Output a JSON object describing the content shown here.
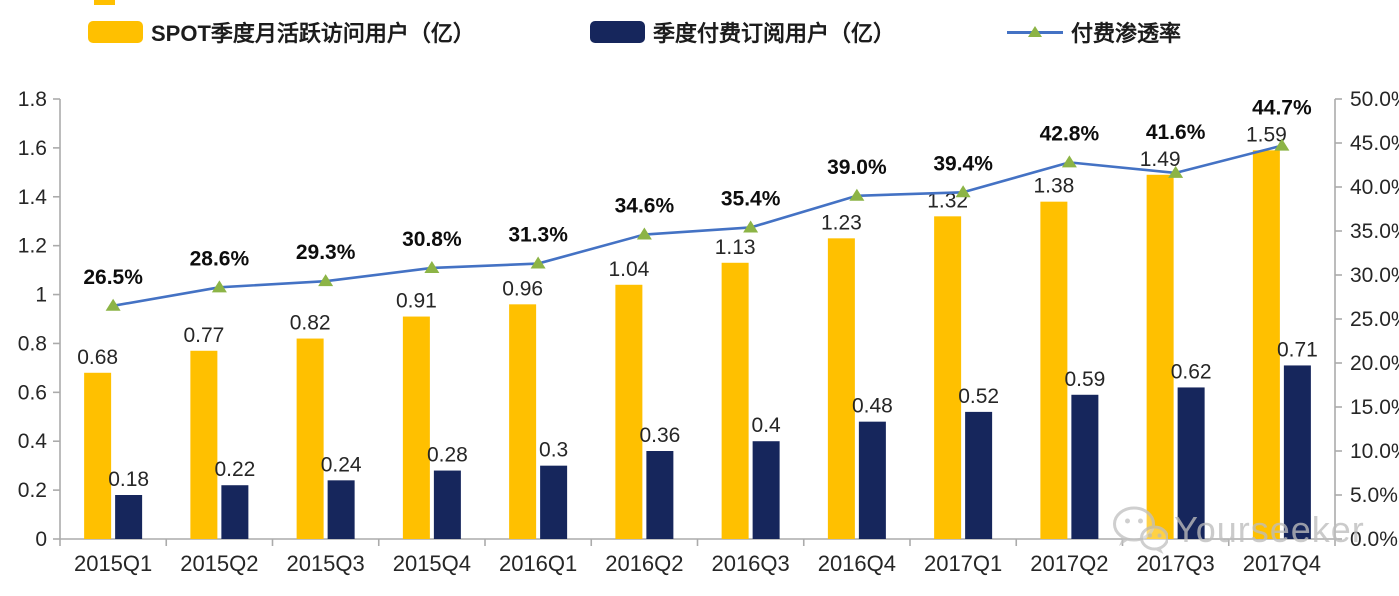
{
  "legend": [
    {
      "label": "SPOT季度月活跃访问用户（亿）",
      "type": "bar",
      "color": "#FFC000"
    },
    {
      "label": "季度付费订阅用户（亿）",
      "type": "bar",
      "color": "#16265C"
    },
    {
      "label": "付费渗透率",
      "type": "line",
      "color": "#4472C4",
      "marker_color": "#8CB446"
    }
  ],
  "chart_data": {
    "type": "bar",
    "subtype": "grouped-bars-with-line-combo",
    "categories": [
      "2015Q1",
      "2015Q2",
      "2015Q3",
      "2015Q4",
      "2016Q1",
      "2016Q2",
      "2016Q3",
      "2016Q4",
      "2017Q1",
      "2017Q2",
      "2017Q3",
      "2017Q4"
    ],
    "series": [
      {
        "name": "SPOT季度月活跃访问用户（亿）",
        "type": "bar",
        "axis": "left",
        "color": "#FFC000",
        "values": [
          0.68,
          0.77,
          0.82,
          0.91,
          0.96,
          1.04,
          1.13,
          1.23,
          1.32,
          1.38,
          1.49,
          1.59
        ],
        "labels": [
          "0.68",
          "0.77",
          "0.82",
          "0.91",
          "0.96",
          "1.04",
          "1.13",
          "1.23",
          "1.32",
          "1.38",
          "1.49",
          "1.59"
        ]
      },
      {
        "name": "季度付费订阅用户（亿）",
        "type": "bar",
        "axis": "left",
        "color": "#16265C",
        "values": [
          0.18,
          0.22,
          0.24,
          0.28,
          0.3,
          0.36,
          0.4,
          0.48,
          0.52,
          0.59,
          0.62,
          0.71
        ],
        "labels": [
          "0.18",
          "0.22",
          "0.24",
          "0.28",
          "0.3",
          "0.36",
          "0.4",
          "0.48",
          "0.52",
          "0.59",
          "0.62",
          "0.71"
        ]
      },
      {
        "name": "付费渗透率",
        "type": "line",
        "axis": "right",
        "color": "#4472C4",
        "marker": "triangle",
        "marker_color": "#8CB446",
        "values": [
          26.5,
          28.6,
          29.3,
          30.8,
          31.3,
          34.6,
          35.4,
          39.0,
          39.4,
          42.8,
          41.6,
          44.7
        ],
        "labels": [
          "26.5%",
          "28.6%",
          "29.3%",
          "30.8%",
          "31.3%",
          "34.6%",
          "35.4%",
          "39.0%",
          "39.4%",
          "42.8%",
          "41.6%",
          "44.7%"
        ]
      }
    ],
    "left_axis": {
      "min": 0,
      "max": 1.8,
      "step": 0.2,
      "tick_labels": [
        "0",
        "0.2",
        "0.4",
        "0.6",
        "0.8",
        "1",
        "1.2",
        "1.4",
        "1.6",
        "1.8"
      ]
    },
    "right_axis": {
      "min": 0,
      "max": 50,
      "step": 5,
      "tick_labels": [
        "0.0%",
        "5.0%",
        "10.0%",
        "15.0%",
        "20.0%",
        "25.0%",
        "30.0%",
        "35.0%",
        "40.0%",
        "45.0%",
        "50.0%"
      ]
    },
    "grid": false,
    "legend_position": "top",
    "axis_color": "#ABABAB",
    "label_color": "#262626",
    "pct_label_color": "#0d0d0d"
  },
  "watermark": {
    "text": "Yourseeker",
    "icon": "wechat-icon"
  }
}
